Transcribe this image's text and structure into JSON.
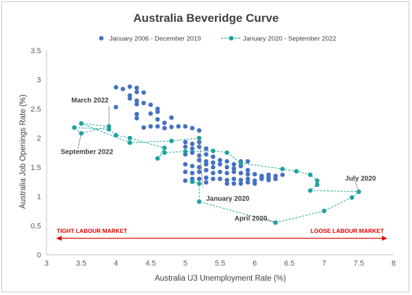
{
  "chart_data": {
    "type": "scatter",
    "title": "Australia Beveridge Curve",
    "xlabel": "Australia U3 Unemployment Rate (%)",
    "ylabel": "Australia Job Openings Rate (%)",
    "xlim": [
      3,
      8
    ],
    "ylim": [
      0,
      3.5
    ],
    "x_ticks": [
      "3",
      "3.5",
      "4",
      "4.5",
      "5",
      "5.5",
      "6",
      "6.5",
      "7",
      "7.5",
      "8"
    ],
    "y_ticks": [
      "0",
      "0.5",
      "1",
      "1.5",
      "2",
      "2.5",
      "3",
      "3.5"
    ],
    "grid": false,
    "legend_position": "top",
    "series": [
      {
        "name": "January 2006 - December 2019",
        "style": "markers",
        "color": "#4472c4",
        "points": [
          [
            4.0,
            2.87
          ],
          [
            4.1,
            2.84
          ],
          [
            4.2,
            2.88
          ],
          [
            4.3,
            2.86
          ],
          [
            4.3,
            2.79
          ],
          [
            4.4,
            2.78
          ],
          [
            4.2,
            2.73
          ],
          [
            4.2,
            2.68
          ],
          [
            4.3,
            2.64
          ],
          [
            4.4,
            2.6
          ],
          [
            4.3,
            2.58
          ],
          [
            4.5,
            2.57
          ],
          [
            4.0,
            2.53
          ],
          [
            4.6,
            2.5
          ],
          [
            4.6,
            2.45
          ],
          [
            4.5,
            2.42
          ],
          [
            4.3,
            2.41
          ],
          [
            4.8,
            2.35
          ],
          [
            4.3,
            2.34
          ],
          [
            4.6,
            2.32
          ],
          [
            4.7,
            2.26
          ],
          [
            4.5,
            2.2
          ],
          [
            4.4,
            2.18
          ],
          [
            4.6,
            2.2
          ],
          [
            4.7,
            2.17
          ],
          [
            4.8,
            2.19
          ],
          [
            4.9,
            2.2
          ],
          [
            5.0,
            2.2
          ],
          [
            5.1,
            2.17
          ],
          [
            5.2,
            2.13
          ],
          [
            5.0,
            1.93
          ],
          [
            5.1,
            1.9
          ],
          [
            5.2,
            1.93
          ],
          [
            5.0,
            1.85
          ],
          [
            5.1,
            1.82
          ],
          [
            5.2,
            1.85
          ],
          [
            5.3,
            1.82
          ],
          [
            5.0,
            1.72
          ],
          [
            5.1,
            1.75
          ],
          [
            5.2,
            1.7
          ],
          [
            5.3,
            1.72
          ],
          [
            5.4,
            1.68
          ],
          [
            5.2,
            1.62
          ],
          [
            5.3,
            1.6
          ],
          [
            5.4,
            1.58
          ],
          [
            5.5,
            1.62
          ],
          [
            5.6,
            1.6
          ],
          [
            5.7,
            1.55
          ],
          [
            5.8,
            1.6
          ],
          [
            5.9,
            1.6
          ],
          [
            5.0,
            1.55
          ],
          [
            5.1,
            1.52
          ],
          [
            5.2,
            1.5
          ],
          [
            5.3,
            1.55
          ],
          [
            5.4,
            1.5
          ],
          [
            5.5,
            1.55
          ],
          [
            5.6,
            1.5
          ],
          [
            5.7,
            1.48
          ],
          [
            5.8,
            1.52
          ],
          [
            5.9,
            1.45
          ],
          [
            5.0,
            1.42
          ],
          [
            5.1,
            1.4
          ],
          [
            5.2,
            1.42
          ],
          [
            5.3,
            1.45
          ],
          [
            5.4,
            1.4
          ],
          [
            5.5,
            1.42
          ],
          [
            5.6,
            1.4
          ],
          [
            5.7,
            1.42
          ],
          [
            5.8,
            1.4
          ],
          [
            5.9,
            1.38
          ],
          [
            6.0,
            1.38
          ],
          [
            6.1,
            1.35
          ],
          [
            6.2,
            1.37
          ],
          [
            6.3,
            1.35
          ],
          [
            6.4,
            1.37
          ],
          [
            5.0,
            1.27
          ],
          [
            5.1,
            1.3
          ],
          [
            5.2,
            1.3
          ],
          [
            5.3,
            1.32
          ],
          [
            5.4,
            1.3
          ],
          [
            5.5,
            1.3
          ],
          [
            5.6,
            1.28
          ],
          [
            5.7,
            1.3
          ],
          [
            5.8,
            1.28
          ],
          [
            5.9,
            1.3
          ],
          [
            6.0,
            1.27
          ],
          [
            6.1,
            1.3
          ],
          [
            6.2,
            1.28
          ],
          [
            6.3,
            1.3
          ],
          [
            5.3,
            1.24
          ],
          [
            5.6,
            1.22
          ],
          [
            5.7,
            1.22
          ],
          [
            5.8,
            1.22
          ],
          [
            5.9,
            1.24
          ],
          [
            6.0,
            1.22
          ],
          [
            6.2,
            1.32
          ],
          [
            6.1,
            1.33
          ]
        ]
      },
      {
        "name": "January 2020 - September 2022",
        "style": "line-markers-dashed",
        "color": "#1ba39c",
        "points": [
          [
            5.2,
            2.0
          ],
          [
            4.8,
            1.95
          ],
          [
            4.2,
            1.92
          ],
          [
            3.5,
            2.25
          ],
          [
            3.9,
            2.2
          ],
          [
            3.5,
            2.08
          ],
          [
            3.4,
            2.18
          ],
          [
            3.9,
            2.15
          ],
          [
            4.0,
            2.05
          ],
          [
            4.2,
            2.0
          ],
          [
            4.7,
            1.83
          ],
          [
            4.6,
            1.65
          ],
          [
            4.7,
            1.75
          ],
          [
            5.0,
            1.77
          ],
          [
            5.4,
            1.78
          ],
          [
            5.6,
            1.75
          ],
          [
            5.8,
            1.57
          ],
          [
            6.4,
            1.47
          ],
          [
            6.6,
            1.43
          ],
          [
            6.8,
            1.37
          ],
          [
            6.9,
            1.27
          ],
          [
            6.9,
            1.2
          ],
          [
            6.8,
            1.1
          ],
          [
            7.5,
            1.08
          ],
          [
            7.4,
            0.98
          ],
          [
            7.0,
            0.75
          ],
          [
            6.3,
            0.55
          ],
          [
            5.2,
            0.91
          ],
          [
            5.2,
            1.22
          ],
          [
            5.1,
            1.25
          ]
        ]
      }
    ],
    "annotations": [
      {
        "text": "March 2022",
        "point": [
          3.9,
          2.2
        ]
      },
      {
        "text": "September 2022",
        "point": [
          3.5,
          2.08
        ]
      },
      {
        "text": "January 2020",
        "point": [
          5.2,
          2.0
        ]
      },
      {
        "text": "April 2020",
        "point": [
          6.3,
          0.55
        ]
      },
      {
        "text": "July 2020",
        "point": [
          7.5,
          1.08
        ]
      }
    ],
    "arrow_labels": {
      "left": "TIGHT LABOUR MARKET",
      "right": "LOOSE LABOUR MARKET",
      "color": "#e00000"
    }
  }
}
